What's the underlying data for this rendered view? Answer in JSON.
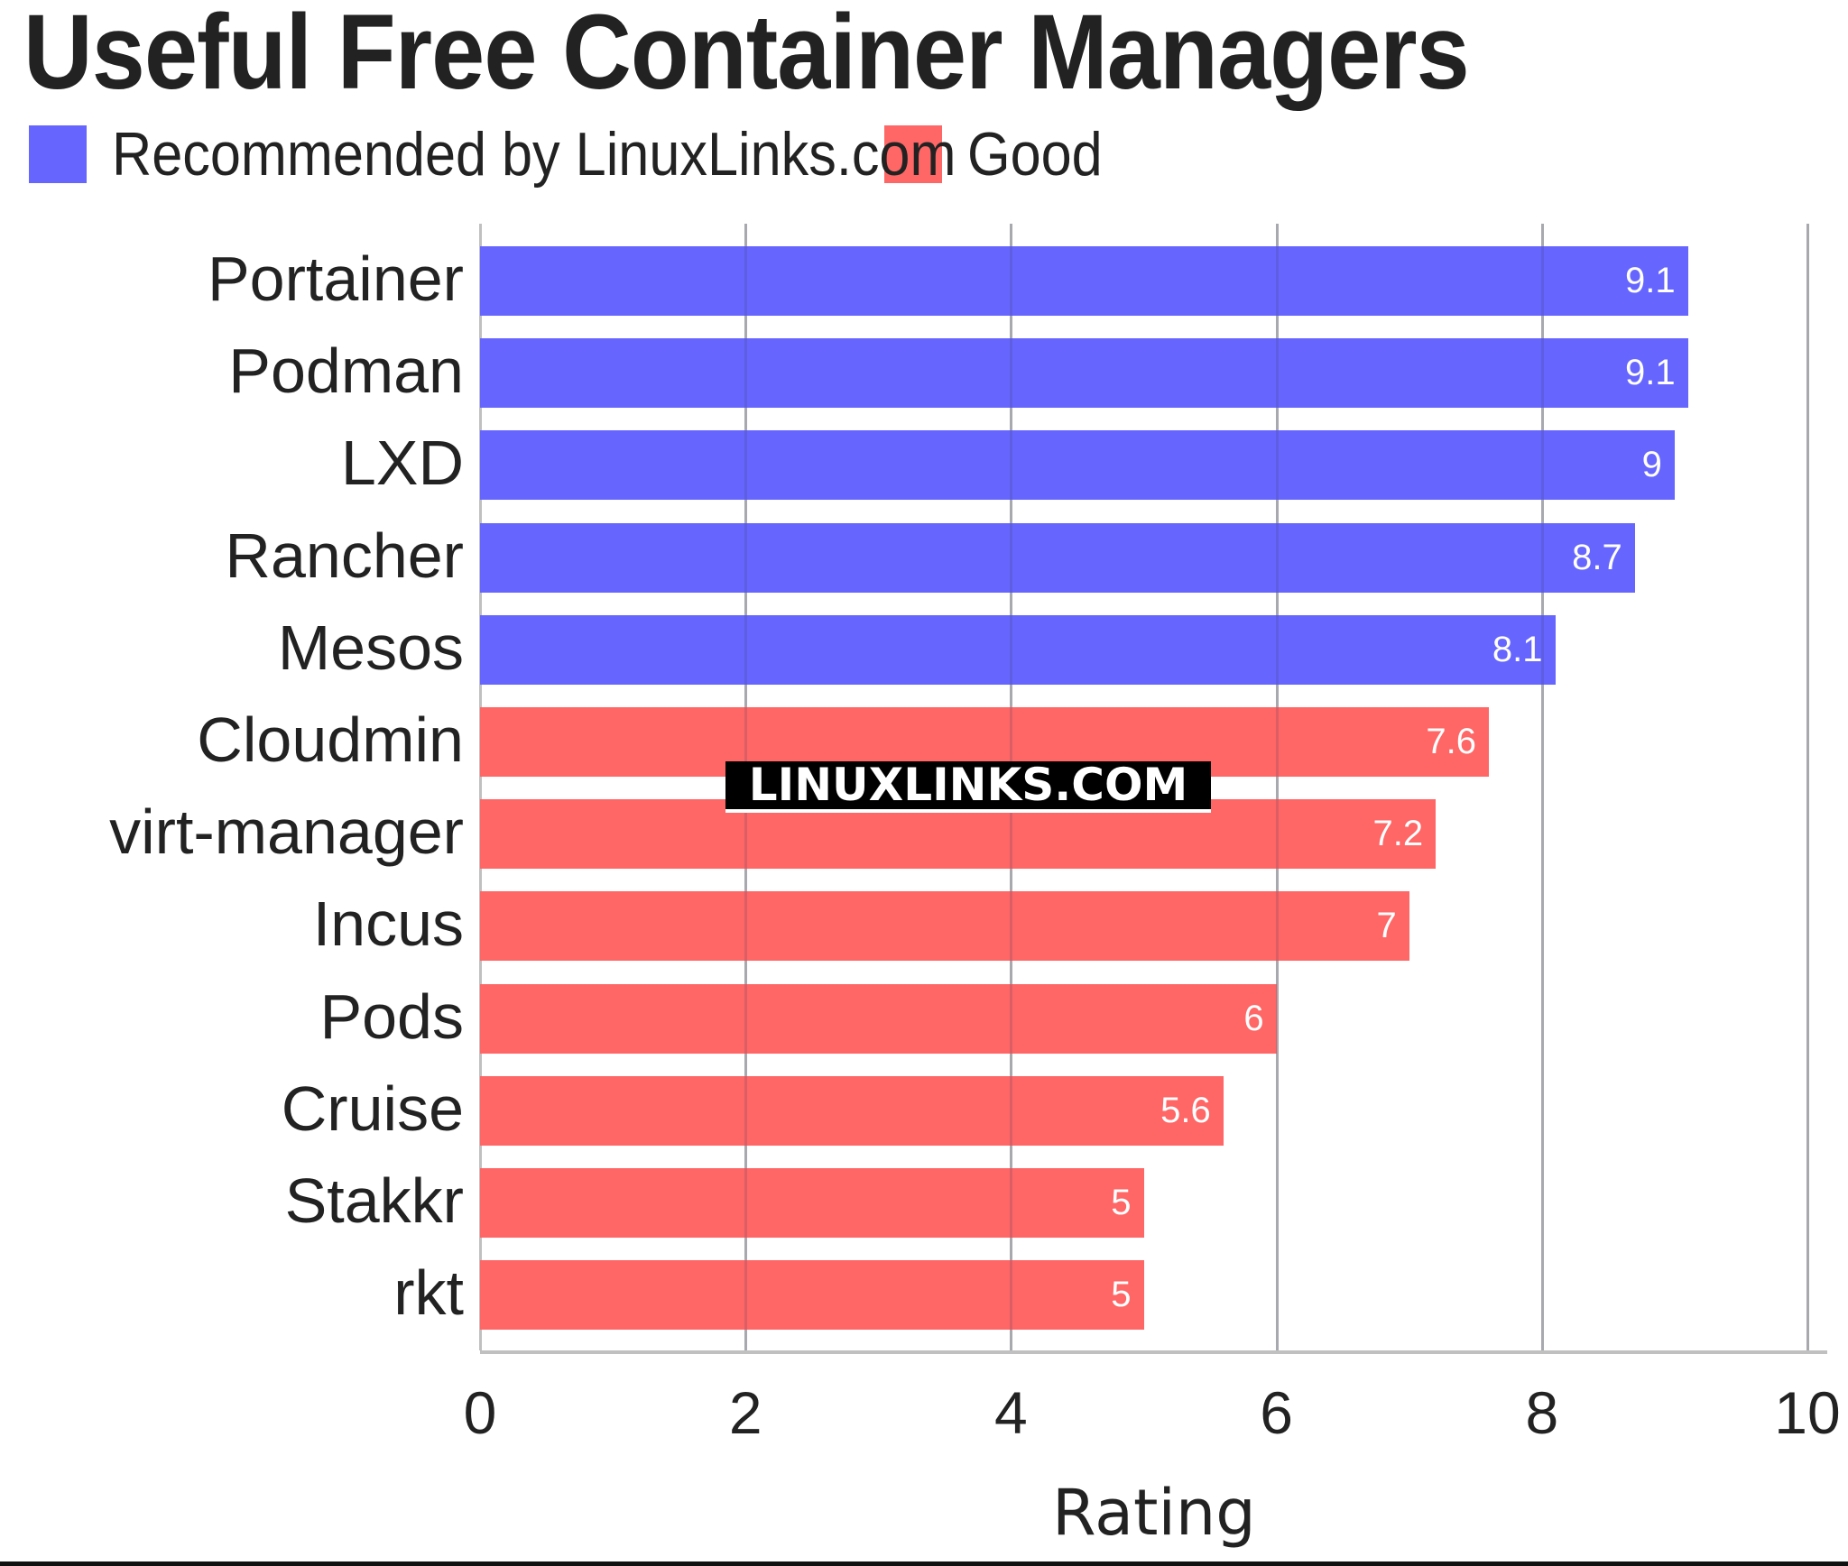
{
  "title": "Useful Free Container Managers",
  "legend": [
    {
      "label": "Recommended by LinuxLinks.com",
      "color": "#6666ff"
    },
    {
      "label": "Good",
      "color": "#ff6666"
    }
  ],
  "watermark": "LINUXLINKS.COM",
  "colors": {
    "recommended": "#6666ff",
    "good": "#ff6666",
    "grid": "#c0c0c0",
    "text": "#222222"
  },
  "chart_data": {
    "type": "bar",
    "orientation": "horizontal",
    "title": "Useful Free Container Managers",
    "xlabel": "Rating",
    "ylabel": "",
    "xlim": [
      0,
      10
    ],
    "xticks": [
      "0",
      "2",
      "4",
      "6",
      "8",
      "10"
    ],
    "grid": true,
    "legend_position": "top-left",
    "categories": [
      "Portainer",
      "Podman",
      "LXD",
      "Rancher",
      "Mesos",
      "Cloudmin",
      "virt-manager",
      "Incus",
      "Pods",
      "Cruise",
      "Stakkr",
      "rkt"
    ],
    "values": [
      9.1,
      9.1,
      9,
      8.7,
      8.1,
      7.6,
      7.2,
      7,
      6,
      5.6,
      5,
      5
    ],
    "value_labels": [
      "9.1",
      "9.1",
      "9",
      "8.7",
      "8.1",
      "7.6",
      "7.2",
      "7",
      "6",
      "5.6",
      "5",
      "5"
    ],
    "groups": [
      "Recommended by LinuxLinks.com",
      "Recommended by LinuxLinks.com",
      "Recommended by LinuxLinks.com",
      "Recommended by LinuxLinks.com",
      "Recommended by LinuxLinks.com",
      "Good",
      "Good",
      "Good",
      "Good",
      "Good",
      "Good",
      "Good"
    ],
    "series": [
      {
        "name": "Recommended by LinuxLinks.com",
        "color": "#6666ff",
        "categories": [
          "Portainer",
          "Podman",
          "LXD",
          "Rancher",
          "Mesos"
        ],
        "values": [
          9.1,
          9.1,
          9,
          8.7,
          8.1
        ]
      },
      {
        "name": "Good",
        "color": "#ff6666",
        "categories": [
          "Cloudmin",
          "virt-manager",
          "Incus",
          "Pods",
          "Cruise",
          "Stakkr",
          "rkt"
        ],
        "values": [
          7.6,
          7.2,
          7,
          6,
          5.6,
          5,
          5
        ]
      }
    ]
  }
}
